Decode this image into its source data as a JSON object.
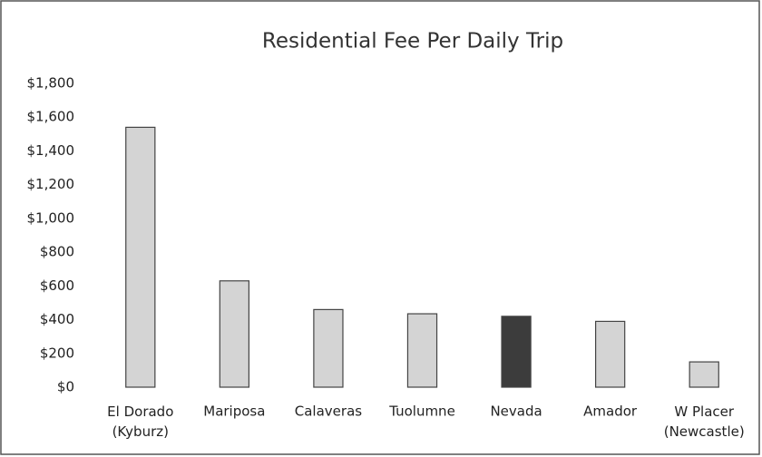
{
  "chart_data": {
    "type": "bar",
    "title": "Residential Fee Per Daily Trip",
    "categories": [
      "El Dorado\n(Kyburz)",
      "Mariposa",
      "Calaveras",
      "Tuolumne",
      "Nevada",
      "Amador",
      "W Placer\n(Newcastle)"
    ],
    "values": [
      1540,
      630,
      460,
      435,
      420,
      390,
      150
    ],
    "colors": [
      "#d4d4d4",
      "#d4d4d4",
      "#d4d4d4",
      "#d4d4d4",
      "#3c3c3c",
      "#d4d4d4",
      "#d4d4d4"
    ],
    "ylim": [
      0,
      1800
    ],
    "yticks": [
      {
        "value": 0,
        "label": "$0"
      },
      {
        "value": 200,
        "label": "$200"
      },
      {
        "value": 400,
        "label": "$400"
      },
      {
        "value": 600,
        "label": "$600"
      },
      {
        "value": 800,
        "label": "$800"
      },
      {
        "value": 1000,
        "label": "$1,000"
      },
      {
        "value": 1200,
        "label": "$1,200"
      },
      {
        "value": 1400,
        "label": "$1,400"
      },
      {
        "value": 1600,
        "label": "$1,600"
      },
      {
        "value": 1800,
        "label": "$1,800"
      }
    ],
    "grid": false
  }
}
